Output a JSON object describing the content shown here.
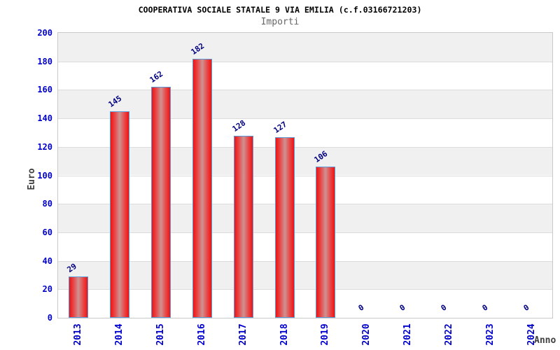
{
  "chart_data": {
    "type": "bar",
    "title": "COOPERATIVA SOCIALE STATALE 9 VIA EMILIA (c.f.03166721203)",
    "subtitle": "Importi",
    "xlabel": "Anno",
    "ylabel": "Euro",
    "categories": [
      "2013",
      "2014",
      "2015",
      "2016",
      "2017",
      "2018",
      "2019",
      "2020",
      "2021",
      "2022",
      "2023",
      "2024"
    ],
    "values": [
      29,
      145,
      162,
      182,
      128,
      127,
      106,
      0,
      0,
      0,
      0,
      0
    ],
    "ylim": [
      0,
      200
    ],
    "yticks": [
      0,
      20,
      40,
      60,
      80,
      100,
      120,
      140,
      160,
      180,
      200
    ],
    "grid": "horizontal",
    "legend": "none",
    "colors": {
      "bar_edge": "#5b9bd5",
      "bar_fill": "#ee1414",
      "bar_highlight": "#cf9292",
      "value_label": "#000080",
      "tick_label": "#0000cc",
      "band": "#f0f0f0",
      "gridline": "#dcdcdc",
      "plot_border": "#c9c9c9",
      "title": "#000000",
      "subtitle": "#666666",
      "axis_title": "#404040"
    }
  }
}
